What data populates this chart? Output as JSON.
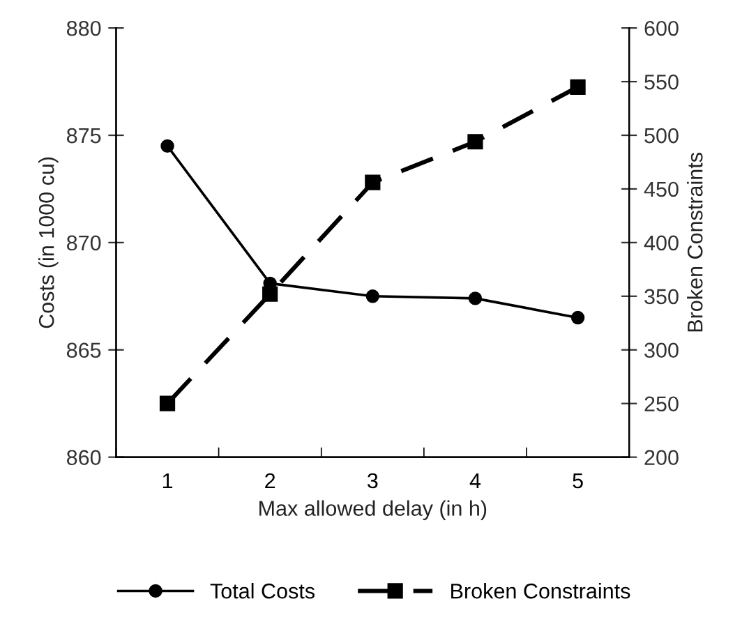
{
  "chart_data": {
    "type": "line",
    "xlabel": "Max allowed delay (in h)",
    "ylabel": "Costs (in 1000 cu)",
    "y2label": "Broken Constraints",
    "categories": [
      "1",
      "2",
      "3",
      "4",
      "5"
    ],
    "series": [
      {
        "name": "Total Costs",
        "color": "#000000",
        "values": [
          874.5,
          868.1,
          867.5,
          867.4,
          866.5
        ],
        "marker": "circle",
        "line_style": "solid"
      },
      {
        "name": "Broken Constraints",
        "color": "#000000",
        "values": [
          250,
          352,
          456,
          494,
          545
        ],
        "marker": "square",
        "line_style": "dashed",
        "axis": "y2"
      }
    ],
    "ylim": [
      860,
      880
    ],
    "yticks": [
      860,
      865,
      870,
      875,
      880
    ],
    "y2lim": [
      200,
      600
    ],
    "y2ticks": [
      200,
      250,
      300,
      350,
      400,
      450,
      500,
      550,
      600
    ],
    "grid": false,
    "legend": "bottom"
  }
}
